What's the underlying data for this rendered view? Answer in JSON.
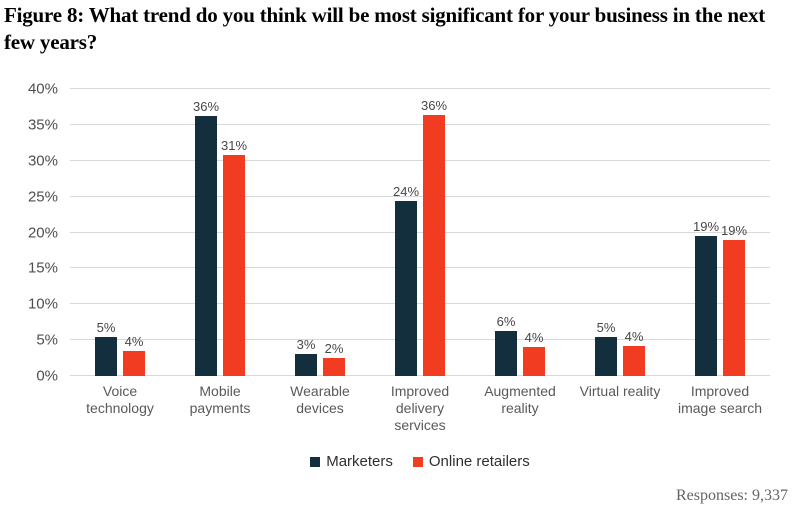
{
  "chart_data": {
    "type": "bar",
    "title": "Figure 8: What trend do you think will be most significant for your business in the next few years?",
    "categories": [
      "Voice technology",
      "Mobile payments",
      "Wearable devices",
      "Improved delivery services",
      "Augmented reality",
      "Virtual reality",
      "Improved image search"
    ],
    "series": [
      {
        "name": "Marketers",
        "color": "#132f3e",
        "values": [
          5,
          36,
          3,
          24,
          6,
          5,
          19
        ],
        "labels": [
          "5%",
          "36%",
          "3%",
          "24%",
          "6%",
          "5%",
          "19%"
        ],
        "bar_heights_pct": [
          5.4,
          36.2,
          3.1,
          24.4,
          6.3,
          5.5,
          19.5
        ]
      },
      {
        "name": "Online retailers",
        "color": "#f23c22",
        "values": [
          4,
          31,
          2,
          36,
          4,
          4,
          19
        ],
        "labels": [
          "4%",
          "31%",
          "2%",
          "36%",
          "4%",
          "4%",
          "19%"
        ],
        "bar_heights_pct": [
          3.5,
          30.8,
          2.5,
          36.4,
          4.1,
          4.2,
          18.9
        ]
      }
    ],
    "ylim": [
      0,
      40
    ],
    "ytick_step": 5,
    "ytick_labels": [
      "0%",
      "5%",
      "10%",
      "15%",
      "20%",
      "25%",
      "30%",
      "35%",
      "40%"
    ],
    "grid": true,
    "legend_position": "bottom"
  },
  "footer": {
    "responses_label": "Responses: 9,337"
  }
}
